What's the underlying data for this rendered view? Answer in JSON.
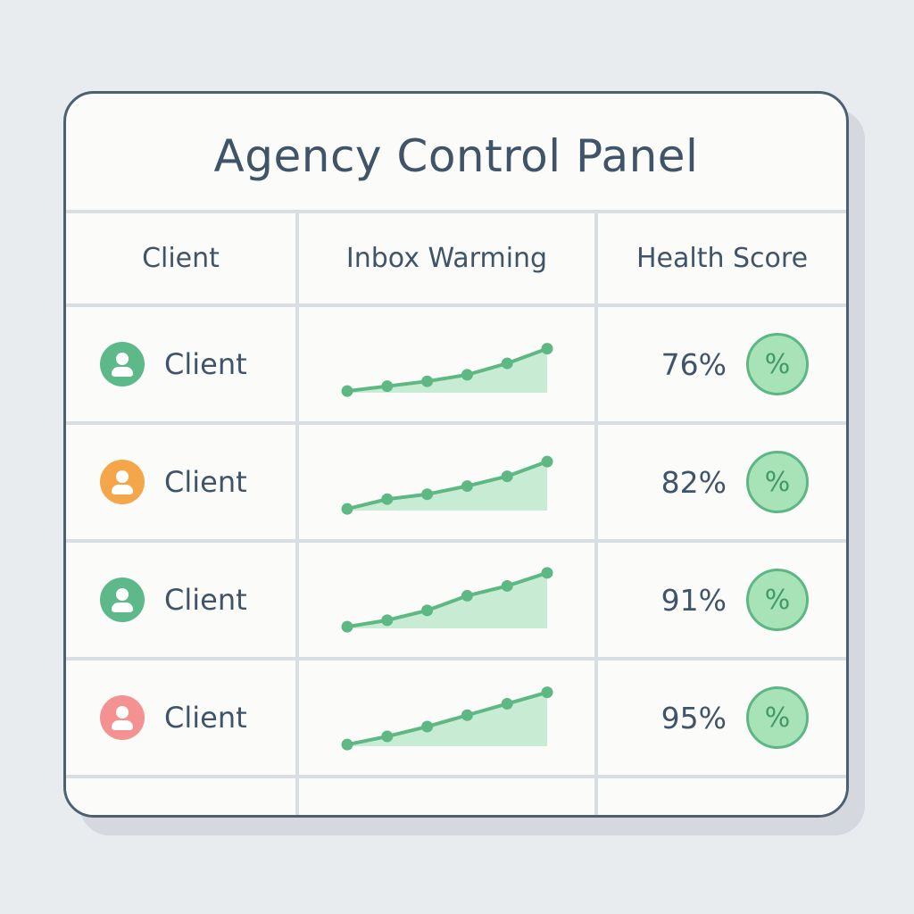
{
  "panel": {
    "title": "Agency Control Panel"
  },
  "table": {
    "headers": [
      "Client",
      "Inbox Warming",
      "Health Score"
    ],
    "rows": [
      {
        "client": "Client",
        "avatar_color": "#5db88a",
        "warming": [
          2,
          8,
          14,
          22,
          36,
          54
        ],
        "score": "76%",
        "badge": "%"
      },
      {
        "client": "Client",
        "avatar_color": "#f6a64a",
        "warming": [
          2,
          14,
          20,
          30,
          42,
          60
        ],
        "score": "82%",
        "badge": "%"
      },
      {
        "client": "Client",
        "avatar_color": "#5db88a",
        "warming": [
          2,
          10,
          22,
          40,
          52,
          68
        ],
        "score": "91%",
        "badge": "%"
      },
      {
        "client": "Client",
        "avatar_color": "#f49292",
        "warming": [
          2,
          12,
          24,
          38,
          52,
          66
        ],
        "score": "95%",
        "badge": "%"
      }
    ]
  },
  "colors": {
    "spark_line": "#5db883",
    "spark_fill": "#c8ecd3"
  }
}
